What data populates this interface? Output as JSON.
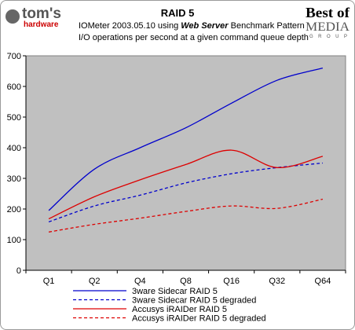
{
  "header": {
    "logo_left_top": "tom's",
    "logo_left_bottom": "hardware",
    "logo_right_top": "Best of",
    "logo_right_middle": "MEDIA",
    "logo_right_bottom": "GROUP",
    "title": "RAID 5",
    "subtitle_part1": "IOMeter 2003.05.10 using ",
    "subtitle_emphasis": "Web Server",
    "subtitle_part2": " Benchmark Pattern",
    "subtitle2": "I/O operations per second at a given command queue depth"
  },
  "colors": {
    "plot_bg": "#c0c0c0",
    "series_blue": "#0000cc",
    "series_red": "#dd0000"
  },
  "chart_data": {
    "type": "line",
    "categories": [
      "Q1",
      "Q2",
      "Q4",
      "Q8",
      "Q16",
      "Q32",
      "Q64"
    ],
    "ylim": [
      0,
      700
    ],
    "yticks": [
      "0",
      "100",
      "200",
      "300",
      "400",
      "500",
      "600",
      "700"
    ],
    "grid": false,
    "legend_position": "bottom",
    "series": [
      {
        "name": "3ware Sidecar RAID 5",
        "color": "#0000cc",
        "dashed": false,
        "values": [
          195,
          330,
          400,
          465,
          545,
          620,
          660
        ]
      },
      {
        "name": "3ware Sidecar RAID 5 degraded",
        "color": "#0000cc",
        "dashed": true,
        "values": [
          158,
          210,
          245,
          285,
          315,
          335,
          350
        ]
      },
      {
        "name": "Accusys iRAIDer RAID 5",
        "color": "#dd0000",
        "dashed": false,
        "values": [
          168,
          240,
          295,
          345,
          392,
          335,
          372
        ]
      },
      {
        "name": "Accusys iRAIDer RAID 5 degraded",
        "color": "#dd0000",
        "dashed": true,
        "values": [
          125,
          150,
          170,
          192,
          210,
          202,
          232
        ]
      }
    ]
  }
}
